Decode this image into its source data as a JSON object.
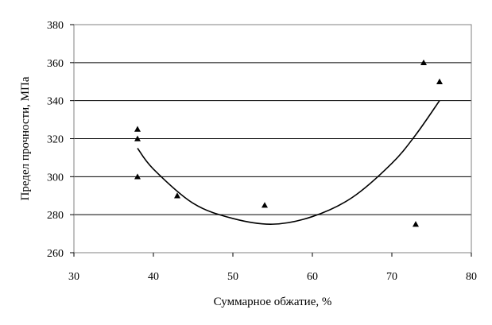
{
  "chart_data": {
    "type": "scatter",
    "title": "",
    "xlabel": "Суммарное обжатие, %",
    "ylabel": "Предел прочности, МПа",
    "xlim": [
      30,
      80
    ],
    "ylim": [
      260,
      380
    ],
    "x_ticks": [
      30,
      40,
      50,
      60,
      70,
      80
    ],
    "y_ticks": [
      260,
      280,
      300,
      320,
      340,
      360,
      380
    ],
    "grid": "horizontal",
    "legend": "none",
    "marker": "triangle",
    "colors": {
      "marker": "#000000",
      "line": "#000000",
      "grid": "#000000"
    },
    "series": [
      {
        "points": [
          {
            "x": 38,
            "y": 325
          },
          {
            "x": 38,
            "y": 320
          },
          {
            "x": 38,
            "y": 300
          },
          {
            "x": 43,
            "y": 290
          },
          {
            "x": 54,
            "y": 285
          },
          {
            "x": 73,
            "y": 275
          },
          {
            "x": 74,
            "y": 360
          },
          {
            "x": 76,
            "y": 350
          }
        ]
      }
    ],
    "trendline": {
      "type": "polynomial",
      "x_range": [
        38,
        76
      ],
      "points": [
        {
          "x": 38,
          "y": 315
        },
        {
          "x": 40,
          "y": 304
        },
        {
          "x": 45,
          "y": 286
        },
        {
          "x": 50,
          "y": 278
        },
        {
          "x": 55,
          "y": 275
        },
        {
          "x": 60,
          "y": 279
        },
        {
          "x": 65,
          "y": 289
        },
        {
          "x": 70,
          "y": 307
        },
        {
          "x": 73,
          "y": 322
        },
        {
          "x": 76,
          "y": 340
        }
      ]
    }
  }
}
